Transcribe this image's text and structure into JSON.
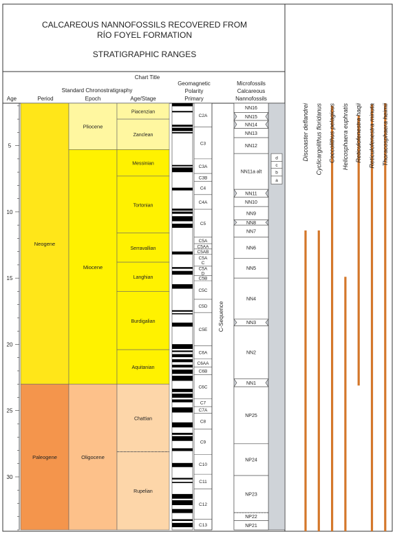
{
  "title": {
    "line1": "CALCAREOUS NANNOFOSSILS RECOVERED FROM",
    "line2": "RÍO FOYEL FORMATION",
    "line3": "STRATIGRAPHIC RANGES"
  },
  "headers": {
    "chart_title": "Chart Title",
    "standard": "Standard Chronostratigraphy",
    "age": "Age",
    "period": "Period",
    "epoch": "Epoch",
    "stage": "Age/Stage",
    "geomag1": "Geomagnetic",
    "geomag2": "Polarity",
    "geomag3": "Primary",
    "micro1": "Microfossils",
    "micro2": "Calcareous",
    "micro3": "Nannofossils",
    "csequence": "C-Sequence"
  },
  "colors": {
    "neogene": "#ffe619",
    "paleogene": "#f4954c",
    "miocene": "#fff200",
    "pliocene": "#fff7a0",
    "oligocene": "#fdc18a",
    "paleo_stage": "#fdd6a9",
    "nanno_bg": "#cfd3d8",
    "range_bar": "#d4772a"
  },
  "chart_data": {
    "type": "range",
    "age_axis": {
      "min": 1.8,
      "max": 34.0,
      "ticks": [
        5,
        10,
        15,
        20,
        25,
        30
      ],
      "label": "Age"
    },
    "periods": [
      {
        "name": "Neogene",
        "top": 1.8,
        "base": 23.0
      },
      {
        "name": "Paleogene",
        "top": 23.0,
        "base": 34.0
      }
    ],
    "epochs": [
      {
        "name": "Pliocene",
        "top": 1.8,
        "base": 5.3
      },
      {
        "name": "Miocene",
        "top": 5.3,
        "base": 23.0
      },
      {
        "name": "Oligocene",
        "top": 23.0,
        "base": 34.0
      }
    ],
    "stages": [
      {
        "name": "Piacenzian",
        "top": 1.8,
        "base": 3.0
      },
      {
        "name": "Zanclean",
        "top": 3.0,
        "base": 5.3
      },
      {
        "name": "Messinian",
        "top": 5.3,
        "base": 7.3
      },
      {
        "name": "Tortonian",
        "top": 7.3,
        "base": 11.6
      },
      {
        "name": "Serravallian",
        "top": 11.6,
        "base": 13.8
      },
      {
        "name": "Langhian",
        "top": 13.8,
        "base": 16.0
      },
      {
        "name": "Burdigalian",
        "top": 16.0,
        "base": 20.4
      },
      {
        "name": "Aquitanian",
        "top": 20.4,
        "base": 23.0
      },
      {
        "name": "Chattian",
        "top": 23.0,
        "base": 28.1
      },
      {
        "name": "Rupelian",
        "top": 28.1,
        "base": 34.0
      }
    ],
    "chrons": [
      {
        "name": "C2A",
        "top": 1.8,
        "base": 3.6
      },
      {
        "name": "C3",
        "top": 3.6,
        "base": 6.0
      },
      {
        "name": "C3A",
        "top": 6.0,
        "base": 7.1
      },
      {
        "name": "C3B",
        "top": 7.1,
        "base": 7.7
      },
      {
        "name": "C4",
        "top": 7.7,
        "base": 8.7
      },
      {
        "name": "C4A",
        "top": 8.7,
        "base": 9.8
      },
      {
        "name": "C5",
        "top": 9.8,
        "base": 11.9
      },
      {
        "name": "C5A",
        "top": 11.9,
        "base": 12.4
      },
      {
        "name": "C5AA",
        "top": 12.4,
        "base": 12.8
      },
      {
        "name": "C5AB",
        "top": 12.8,
        "base": 13.2
      },
      {
        "name": "C5A\nC",
        "top": 13.2,
        "base": 14.1
      },
      {
        "name": "C5A\nD",
        "top": 14.1,
        "base": 14.8
      },
      {
        "name": "C5B",
        "top": 14.8,
        "base": 15.2
      },
      {
        "name": "C5C",
        "top": 15.2,
        "base": 16.6
      },
      {
        "name": "C5D",
        "top": 16.6,
        "base": 17.6
      },
      {
        "name": "C5E",
        "top": 17.6,
        "base": 20.1
      },
      {
        "name": "C6A",
        "top": 20.1,
        "base": 21.1
      },
      {
        "name": "C6AA",
        "top": 21.1,
        "base": 21.7
      },
      {
        "name": "C6B",
        "top": 21.7,
        "base": 22.3
      },
      {
        "name": "C6C",
        "top": 22.3,
        "base": 24.1
      },
      {
        "name": "C7",
        "top": 24.1,
        "base": 24.7
      },
      {
        "name": "C7A",
        "top": 24.7,
        "base": 25.2
      },
      {
        "name": "C8",
        "top": 25.2,
        "base": 26.4
      },
      {
        "name": "C9",
        "top": 26.4,
        "base": 28.3
      },
      {
        "name": "C10",
        "top": 28.3,
        "base": 29.8
      },
      {
        "name": "C11",
        "top": 29.8,
        "base": 30.9
      },
      {
        "name": "C12",
        "top": 30.9,
        "base": 33.2
      },
      {
        "name": "C13",
        "top": 33.2,
        "base": 34.0
      }
    ],
    "nanno_zones": [
      {
        "name": "NN16",
        "top": 1.8,
        "base": 2.5,
        "notch": false
      },
      {
        "name": "NN15",
        "top": 2.5,
        "base": 3.1,
        "notch": true
      },
      {
        "name": "NN14",
        "top": 3.1,
        "base": 3.7,
        "notch": true
      },
      {
        "name": "NN13",
        "top": 3.7,
        "base": 4.4,
        "notch": false
      },
      {
        "name": "NN12",
        "top": 4.4,
        "base": 5.6,
        "notch": false
      },
      {
        "name": "NN11a alt",
        "top": 5.6,
        "base": 8.3,
        "notch": false
      },
      {
        "name": "NN11",
        "top": 8.3,
        "base": 8.9,
        "notch": true
      },
      {
        "name": "NN10",
        "top": 8.9,
        "base": 9.6,
        "notch": false
      },
      {
        "name": "NN9",
        "top": 9.6,
        "base": 10.6,
        "notch": false
      },
      {
        "name": "NN8",
        "top": 10.6,
        "base": 11.0,
        "notch": true
      },
      {
        "name": "NN7",
        "top": 11.0,
        "base": 11.9,
        "notch": false
      },
      {
        "name": "NN6",
        "top": 11.9,
        "base": 13.5,
        "notch": false
      },
      {
        "name": "NN5",
        "top": 13.5,
        "base": 15.0,
        "notch": false
      },
      {
        "name": "NN4",
        "top": 15.0,
        "base": 18.1,
        "notch": false
      },
      {
        "name": "NN3",
        "top": 18.1,
        "base": 18.6,
        "notch": true
      },
      {
        "name": "NN2",
        "top": 18.6,
        "base": 22.6,
        "notch": false
      },
      {
        "name": "NN1",
        "top": 22.6,
        "base": 23.2,
        "notch": true
      },
      {
        "name": "NP25",
        "top": 23.2,
        "base": 27.5,
        "notch": false
      },
      {
        "name": "NP24",
        "top": 27.5,
        "base": 29.9,
        "notch": false
      },
      {
        "name": "NP23",
        "top": 29.9,
        "base": 32.7,
        "notch": false
      },
      {
        "name": "NP22",
        "top": 32.7,
        "base": 33.3,
        "notch": false
      },
      {
        "name": "NP21",
        "top": 33.3,
        "base": 34.0,
        "notch": false
      }
    ],
    "subzones": [
      {
        "name": "d",
        "top": 5.6,
        "base": 6.2
      },
      {
        "name": "c",
        "top": 6.2,
        "base": 6.7
      },
      {
        "name": "b",
        "top": 6.7,
        "base": 7.3
      },
      {
        "name": "a",
        "top": 7.3,
        "base": 7.9
      }
    ],
    "taxa": [
      {
        "name": "Discoaster deflandrei",
        "top": 11.4,
        "base": 34.0
      },
      {
        "name": "Cyclicargolithus floridanus",
        "top": 11.4,
        "base": 34.0
      },
      {
        "name": "Coccolithus pelagicus",
        "top": 2.0,
        "base": 34.0
      },
      {
        "name": "Helicosphaera euphratis",
        "top": 14.9,
        "base": 34.0
      },
      {
        "name": "Reticulofenestra haqii",
        "top": 2.7,
        "base": 23.0
      },
      {
        "name": "Reticulofenestra minuta",
        "top": 1.9,
        "base": 34.0
      },
      {
        "name": "Thoracosphaera heimii",
        "top": 1.8,
        "base": 34.0
      }
    ]
  }
}
